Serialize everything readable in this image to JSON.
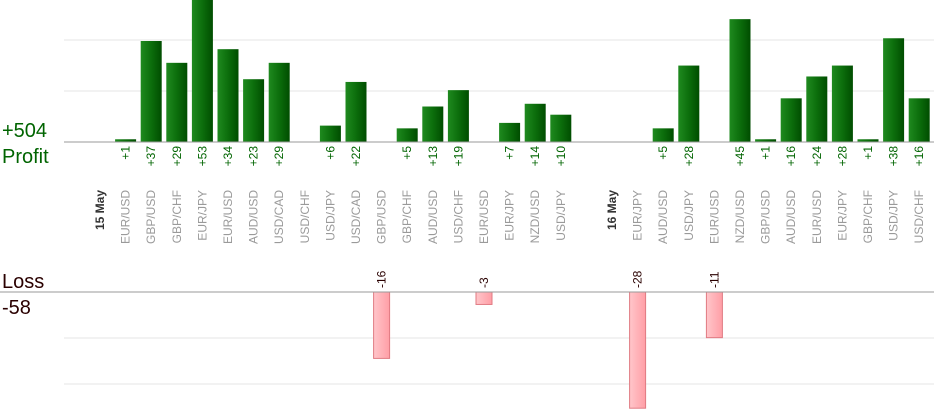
{
  "chart_data": {
    "type": "bar",
    "profit_total_label": "+504",
    "profit_label": "Profit",
    "loss_label": "Loss",
    "loss_total_label": "-58",
    "columns": [
      {
        "date": "15 May"
      },
      {
        "pair": "EUR/USD",
        "profit": 1,
        "profit_label": "+1"
      },
      {
        "pair": "GBP/USD",
        "profit": 37,
        "profit_label": "+37"
      },
      {
        "pair": "GBP/CHF",
        "profit": 29,
        "profit_label": "+29"
      },
      {
        "pair": "EUR/JPY",
        "profit": 53,
        "profit_label": "+53"
      },
      {
        "pair": "EUR/USD",
        "profit": 34,
        "profit_label": "+34"
      },
      {
        "pair": "AUD/USD",
        "profit": 23,
        "profit_label": "+23"
      },
      {
        "pair": "USD/CAD",
        "profit": 29,
        "profit_label": "+29"
      },
      {
        "pair": "USD/CHF"
      },
      {
        "pair": "USD/JPY",
        "profit": 6,
        "profit_label": "+6"
      },
      {
        "pair": "USD/CAD",
        "profit": 22,
        "profit_label": "+22"
      },
      {
        "pair": "GBP/USD",
        "loss": -16,
        "loss_label": "-16"
      },
      {
        "pair": "GBP/CHF",
        "profit": 5,
        "profit_label": "+5"
      },
      {
        "pair": "AUD/USD",
        "profit": 13,
        "profit_label": "+13"
      },
      {
        "pair": "USD/CHF",
        "profit": 19,
        "profit_label": "+19"
      },
      {
        "pair": "EUR/USD",
        "loss": -3,
        "loss_label": "-3"
      },
      {
        "pair": "EUR/JPY",
        "profit": 7,
        "profit_label": "+7"
      },
      {
        "pair": "NZD/USD",
        "profit": 14,
        "profit_label": "+14"
      },
      {
        "pair": "USD/JPY",
        "profit": 10,
        "profit_label": "+10"
      },
      {
        "pair": ""
      },
      {
        "date": "16 May"
      },
      {
        "pair": "EUR/JPY",
        "loss": -28,
        "loss_label": "-28"
      },
      {
        "pair": "AUD/USD",
        "profit": 5,
        "profit_label": "+5"
      },
      {
        "pair": "USD/JPY",
        "profit": 28,
        "profit_label": "+28"
      },
      {
        "pair": "EUR/USD",
        "loss": -11,
        "loss_label": "-11"
      },
      {
        "pair": "NZD/USD",
        "profit": 45,
        "profit_label": "+45"
      },
      {
        "pair": "GBP/USD",
        "profit": 1,
        "profit_label": "+1"
      },
      {
        "pair": "AUD/USD",
        "profit": 16,
        "profit_label": "+16"
      },
      {
        "pair": "EUR/USD",
        "profit": 24,
        "profit_label": "+24"
      },
      {
        "pair": "EUR/JPY",
        "profit": 28,
        "profit_label": "+28"
      },
      {
        "pair": "GBP/CHF",
        "profit": 1,
        "profit_label": "+1"
      },
      {
        "pair": "USD/JPY",
        "profit": 38,
        "profit_label": "+38"
      },
      {
        "pair": "USD/CHF",
        "profit": 16,
        "profit_label": "+16"
      }
    ],
    "colors": {
      "profit_bar": "#006400",
      "profit_bar_light": "#1f8a1f",
      "loss_bar": "#ffb3b8",
      "loss_bar_border": "#e07a82",
      "profit_text": "#006400",
      "loss_text": "#2a0000"
    }
  }
}
